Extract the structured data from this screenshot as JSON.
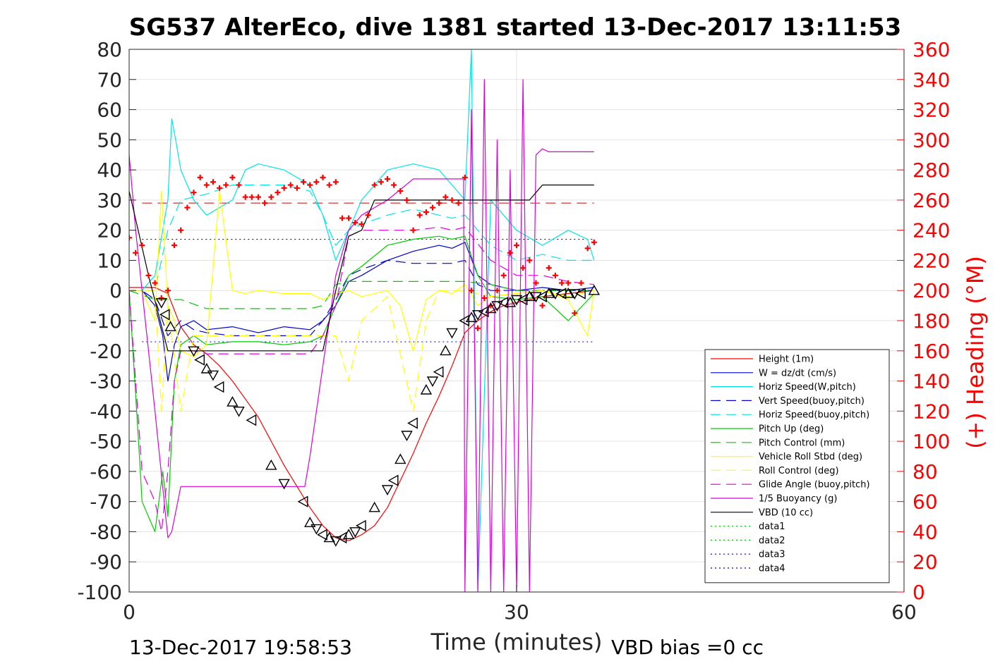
{
  "chart_data": {
    "type": "line",
    "title": "SG537 AlterEco, dive 1381 started 13-Dec-2017 13:11:53",
    "xlabel": "Time (minutes)",
    "ylabel": "",
    "y2label": "(+) Heading (°M)",
    "xlim": [
      0,
      60
    ],
    "ylim": [
      -100,
      80
    ],
    "y2lim": [
      0,
      360
    ],
    "xticks": [
      "0",
      "30",
      "60"
    ],
    "yticks": [
      "80",
      "70",
      "60",
      "50",
      "40",
      "30",
      "20",
      "10",
      "0",
      "-10",
      "-20",
      "-30",
      "-40",
      "-50",
      "-60",
      "-70",
      "-80",
      "-90",
      "-100"
    ],
    "y2ticks": [
      "360",
      "340",
      "320",
      "300",
      "280",
      "260",
      "240",
      "220",
      "200",
      "180",
      "160",
      "140",
      "120",
      "100",
      "80",
      "60",
      "40",
      "20",
      "0"
    ],
    "footer_left": "13-Dec-2017 19:58:53",
    "footer_right": "VBD bias =0 cc",
    "grid": true,
    "legend_position": "lower-right",
    "series": [
      {
        "name": "Height (1m)",
        "color": "#ff0000",
        "style": "solid",
        "x": [
          0,
          1,
          2,
          3,
          4,
          5,
          6,
          7,
          8,
          9,
          10,
          11,
          12,
          13,
          14,
          15,
          16,
          17,
          18,
          19,
          20,
          21,
          22,
          23,
          24,
          25,
          26,
          27,
          28,
          29,
          30,
          31,
          32,
          33,
          34,
          35,
          36
        ],
        "y": [
          1,
          1,
          1,
          -1,
          -12,
          -18,
          -21,
          -25,
          -30,
          -36,
          -42,
          -50,
          -58,
          -65,
          -72,
          -78,
          -82,
          -83,
          -81,
          -78,
          -72,
          -63,
          -54,
          -44,
          -35,
          -25,
          -14,
          -10,
          -7,
          -5,
          -4,
          -3,
          -2,
          -1.5,
          -1,
          -0.5,
          0
        ]
      },
      {
        "name": "W = dz/dt (cm/s)",
        "color": "#0000cd",
        "style": "solid",
        "x": [
          0,
          1,
          2,
          2.6,
          3,
          3.5,
          4,
          5,
          6,
          8,
          10,
          12,
          14,
          15,
          16,
          17,
          18,
          20,
          22,
          24,
          25,
          26,
          27,
          28,
          30,
          32,
          34,
          36
        ],
        "y": [
          0,
          0,
          -5,
          -15,
          -30,
          -18,
          -12,
          -10,
          -13,
          -12,
          -14,
          -12,
          -13,
          -10,
          -5,
          3,
          5,
          10,
          13,
          15,
          14,
          16,
          5,
          2,
          0,
          1,
          0,
          1
        ]
      },
      {
        "name": "Horiz Speed(W,pitch)",
        "color": "#00e5e5",
        "style": "solid",
        "x": [
          0,
          1,
          2,
          2.6,
          3,
          3.3,
          3.6,
          4,
          5,
          6,
          8,
          9,
          10,
          12,
          14,
          15,
          16,
          17,
          18,
          20,
          22,
          24,
          25,
          26,
          26.5,
          27,
          28,
          30,
          32,
          34,
          35.5,
          36
        ],
        "y": [
          0,
          0,
          5,
          20,
          30,
          57,
          50,
          40,
          30,
          25,
          30,
          40,
          42,
          40,
          35,
          25,
          10,
          20,
          30,
          40,
          42,
          40,
          35,
          30,
          80,
          -100,
          30,
          20,
          15,
          20,
          17,
          10
        ]
      },
      {
        "name": "Vert Speed(buoy,pitch)",
        "color": "#0000cd",
        "style": "dashed",
        "x": [
          0,
          1,
          2,
          3,
          4,
          5,
          6,
          8,
          10,
          12,
          14,
          15,
          16,
          17,
          18,
          20,
          22,
          24,
          25,
          26,
          27,
          28,
          30,
          32,
          34,
          36
        ],
        "y": [
          0,
          0,
          -3,
          -15,
          -10,
          -13,
          -14,
          -15,
          -15,
          -15,
          -15,
          -10,
          -3,
          5,
          7,
          10,
          9,
          9,
          9,
          10,
          2,
          0,
          0,
          0,
          0,
          0
        ]
      },
      {
        "name": "Horiz Speed(buoy,pitch)",
        "color": "#00e5e5",
        "style": "dashed",
        "x": [
          0,
          2,
          3,
          4,
          6,
          8,
          10,
          12,
          14,
          15,
          16,
          17,
          18,
          20,
          22,
          24,
          25,
          26,
          28,
          30,
          32,
          34,
          36
        ],
        "y": [
          0,
          0,
          20,
          30,
          32,
          35,
          35,
          35,
          33,
          25,
          15,
          20,
          22,
          25,
          27,
          25,
          24,
          25,
          15,
          10,
          12,
          10,
          10
        ]
      },
      {
        "name": "Pitch Up (deg)",
        "color": "#00cc00",
        "style": "solid",
        "x": [
          0,
          0.8,
          1,
          1.5,
          2,
          2.6,
          3,
          3.5,
          4,
          5,
          6,
          8,
          10,
          12,
          14,
          15,
          16,
          17,
          18,
          20,
          22,
          24,
          25,
          26,
          27,
          28,
          30,
          32,
          34,
          36
        ],
        "y": [
          0,
          -55,
          -70,
          -75,
          -80,
          -60,
          -75,
          -30,
          -18,
          -15,
          -18,
          -17,
          -17,
          -18,
          -17,
          -15,
          -5,
          5,
          8,
          15,
          17,
          18,
          17,
          18,
          5,
          -2,
          -3,
          -2,
          -10,
          -1
        ]
      },
      {
        "name": "Pitch Control (mm)",
        "color": "#00cc00",
        "style": "dashed",
        "x": [
          0,
          2,
          3,
          4,
          6,
          8,
          10,
          12,
          14,
          15,
          16,
          17,
          18,
          20,
          22,
          24,
          25,
          26,
          28,
          30,
          32,
          34,
          36
        ],
        "y": [
          0,
          -3,
          -3,
          -3,
          -6,
          -6,
          -6,
          -6,
          -6,
          -5,
          2,
          3,
          3,
          3,
          3,
          3,
          3,
          3,
          2,
          0,
          0,
          0,
          0
        ]
      },
      {
        "name": "Vehicle Roll Stbd (deg)",
        "color": "#ffff00",
        "style": "solid",
        "x": [
          0,
          1,
          2,
          2.5,
          3,
          3.5,
          4,
          5,
          6,
          7,
          8,
          9,
          10,
          12,
          14,
          15,
          16,
          17,
          18,
          20,
          21,
          22,
          23,
          24,
          25,
          26,
          27,
          28,
          30,
          32,
          34,
          35.5,
          36
        ],
        "y": [
          0,
          0,
          -10,
          33,
          -5,
          -10,
          -20,
          -22,
          -18,
          33,
          0,
          -1,
          0,
          -1,
          -1,
          -3,
          -1,
          0,
          -2,
          0,
          -5,
          -20,
          -3,
          0,
          -1,
          2,
          -5,
          -2,
          -1,
          0,
          -3,
          -15,
          0
        ]
      },
      {
        "name": "Roll Control (deg)",
        "color": "#ffff00",
        "style": "dashed",
        "x": [
          0,
          2,
          2.5,
          3,
          4,
          5,
          6,
          8,
          10,
          12,
          14,
          16,
          17,
          18,
          20,
          22,
          23,
          24,
          25,
          26,
          28,
          30,
          32,
          34,
          36
        ],
        "y": [
          0,
          0,
          -40,
          -5,
          -40,
          -15,
          -15,
          -15,
          -15,
          -15,
          -15,
          -15,
          -30,
          -10,
          -2,
          -40,
          -10,
          0,
          0,
          0,
          -2,
          -1,
          0,
          -2,
          0
        ]
      },
      {
        "name": "Glide Angle (buoy,pitch)",
        "color": "#dd00dd",
        "style": "dashed",
        "x": [
          0,
          1,
          2,
          2.5,
          3,
          3.5,
          4,
          5,
          6,
          8,
          10,
          12,
          14,
          15,
          16,
          17,
          18,
          20,
          22,
          24,
          25,
          26,
          28,
          30,
          32,
          34,
          36
        ],
        "y": [
          0,
          -60,
          -70,
          -80,
          -60,
          -30,
          -20,
          -20,
          -21,
          -21,
          -21,
          -21,
          -21,
          -15,
          -5,
          18,
          20,
          20,
          20,
          21,
          20,
          21,
          10,
          5,
          5,
          3,
          2
        ]
      },
      {
        "name": "1/5 Buoyancy (g)",
        "color": "#dd00dd",
        "style": "solid",
        "x": [
          0,
          0.5,
          1,
          2,
          3,
          3.3,
          4,
          6,
          8,
          10,
          12,
          13.6,
          14,
          15,
          16,
          17,
          18,
          20,
          22,
          24,
          25,
          25.9,
          26,
          26.5,
          27,
          27.5,
          28,
          28.5,
          29,
          29.5,
          30,
          30.5,
          31,
          31.5,
          32,
          32.5,
          33,
          34,
          35,
          36
        ],
        "y": [
          45,
          20,
          0,
          -40,
          -82,
          -80,
          -65,
          -65,
          -65,
          -65,
          -65,
          -65,
          -55,
          -25,
          5,
          20,
          25,
          30,
          37,
          37,
          37,
          37,
          -100,
          60,
          -100,
          70,
          -100,
          50,
          -100,
          40,
          -100,
          70,
          -100,
          45,
          47,
          46,
          46,
          46,
          46,
          46
        ]
      },
      {
        "name": "VBD (10 cc)",
        "color": "#000000",
        "style": "solid",
        "x": [
          0,
          0.7,
          1.5,
          2.4,
          3,
          4,
          6,
          8,
          10,
          12,
          14,
          15,
          16,
          17,
          18,
          19,
          20,
          22,
          24,
          26,
          28,
          30,
          31,
          32,
          33,
          34,
          35,
          36
        ],
        "y": [
          33,
          20,
          5,
          -10,
          -20,
          -20,
          -20,
          -20,
          -20,
          -20,
          -20,
          -20,
          0,
          18,
          20,
          30,
          30,
          30,
          30,
          30,
          30,
          30,
          30,
          35,
          35,
          35,
          35,
          35
        ]
      },
      {
        "name": "data1",
        "color": "#00cc00",
        "style": "dotted",
        "x": [],
        "y": []
      },
      {
        "name": "data2",
        "color": "#00cc00",
        "style": "dotted",
        "x": [],
        "y": []
      },
      {
        "name": "data3",
        "color": "#0000cd",
        "style": "dotted",
        "x": [],
        "y": []
      },
      {
        "name": "data4",
        "color": "#0000cd",
        "style": "dotted",
        "x": [],
        "y": []
      }
    ],
    "reference_lines": [
      {
        "y": 17,
        "color": "#0000cd",
        "style": "dotted",
        "x0": 1,
        "x1": 36
      },
      {
        "y": -17,
        "color": "#0000cd",
        "style": "dotted",
        "x0": 1,
        "x1": 36
      },
      {
        "y": 29,
        "color": "#cc0000",
        "style": "dashed",
        "x0": 1,
        "x1": 36
      }
    ],
    "heading_points": {
      "color": "#ff0000",
      "x": [
        0,
        0.5,
        1,
        1.5,
        2,
        2.5,
        3,
        3.5,
        4,
        4.5,
        5,
        5.5,
        6,
        6.5,
        7,
        7.5,
        8,
        8.5,
        9,
        9.5,
        10,
        10.5,
        11,
        11.5,
        12,
        12.5,
        13,
        13.5,
        14,
        14.5,
        15,
        15.5,
        16,
        16.5,
        17,
        17.5,
        18,
        18.5,
        19,
        19.5,
        20,
        20.5,
        21,
        21.5,
        22,
        22.5,
        23,
        23.5,
        24,
        24.5,
        25,
        25.5,
        26,
        26.5,
        27,
        27.5,
        28,
        28.5,
        29,
        29.5,
        30,
        30.5,
        31,
        31.5,
        32,
        32.5,
        33,
        33.5,
        34,
        34.5,
        35,
        35.5,
        36
      ],
      "y": [
        235,
        225,
        230,
        210,
        205,
        195,
        200,
        230,
        240,
        255,
        265,
        275,
        270,
        272,
        268,
        270,
        275,
        270,
        262,
        262,
        262,
        258,
        262,
        265,
        268,
        270,
        268,
        272,
        270,
        272,
        275,
        270,
        272,
        248,
        248,
        245,
        244,
        250,
        270,
        272,
        274,
        270,
        266,
        260,
        240,
        250,
        252,
        255,
        258,
        262,
        260,
        258,
        275,
        200,
        175,
        195,
        190,
        200,
        210,
        225,
        230,
        215,
        220,
        205,
        190,
        215,
        210,
        205,
        205,
        185,
        205,
        228,
        232
      ]
    },
    "triangle_markers": {
      "x": [
        2.5,
        2.8,
        3.2,
        5,
        5.5,
        6,
        6.5,
        7,
        8,
        8.5,
        9.5,
        11,
        12,
        13.5,
        14,
        14.5,
        15,
        15.5,
        16,
        16.5,
        17,
        17.5,
        18,
        19,
        20,
        20.5,
        21,
        21.5,
        22,
        23,
        23.5,
        24,
        24.5,
        25,
        26,
        26.5,
        27,
        27.5,
        28,
        28.5,
        29,
        29.5,
        30,
        30.5,
        31,
        31.5,
        32,
        32.5,
        33,
        33.5,
        34,
        34.5,
        35,
        36
      ],
      "y": [
        -4,
        -8,
        -12,
        -20,
        -23,
        -26,
        -28,
        -32,
        -37,
        -40,
        -43,
        -58,
        -64,
        -70,
        -77,
        -79,
        -81,
        -82,
        -83,
        -82,
        -81,
        -80,
        -78,
        -72,
        -66,
        -63,
        -56,
        -48,
        -44,
        -33,
        -30,
        -27,
        -20,
        -14,
        -10,
        -9,
        -8,
        -7,
        -6,
        -5,
        -4,
        -4,
        -3,
        -3,
        -2,
        -2,
        -2,
        -1,
        -1,
        -1,
        -1,
        -1,
        -1,
        0
      ]
    }
  }
}
